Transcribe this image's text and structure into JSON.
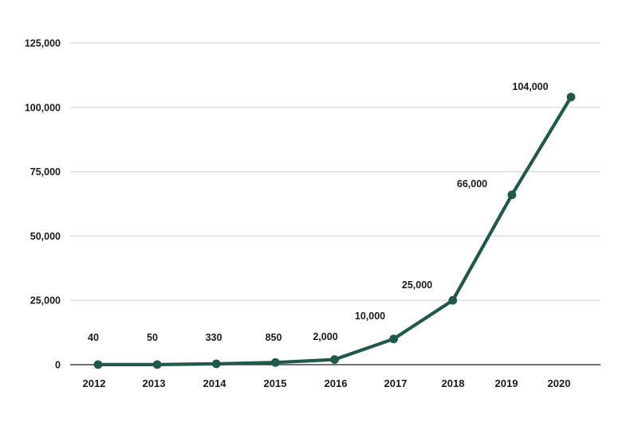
{
  "chart_data": {
    "type": "line",
    "title": "",
    "categories": [
      "2012",
      "2013",
      "2014",
      "2015",
      "2016",
      "2017",
      "2018",
      "2019",
      "2020"
    ],
    "series": [
      {
        "name": "annual-values",
        "values": [
          40,
          50,
          330,
          850,
          2000,
          10000,
          25000,
          66000,
          104000
        ],
        "point_labels": [
          "40",
          "50",
          "330",
          "850",
          "2,000",
          "10,000",
          "25,000",
          "66,000",
          "104,000"
        ]
      }
    ],
    "xlabel": "",
    "ylabel": "",
    "ylim": [
      0,
      125000
    ],
    "y_ticks": [
      0,
      25000,
      50000,
      75000,
      100000,
      125000
    ],
    "y_tick_labels": [
      "0",
      "25,000",
      "50,000",
      "75,000",
      "100,000",
      "125,000"
    ],
    "grid": "horizontal-only",
    "legend": "none",
    "colors": {
      "line": "#20594A",
      "marker": "#20594A",
      "gridline": "#D8D8D8",
      "zero_axis": "#404040",
      "text": "#1A1A1A",
      "background": "#FFFFFF"
    }
  }
}
